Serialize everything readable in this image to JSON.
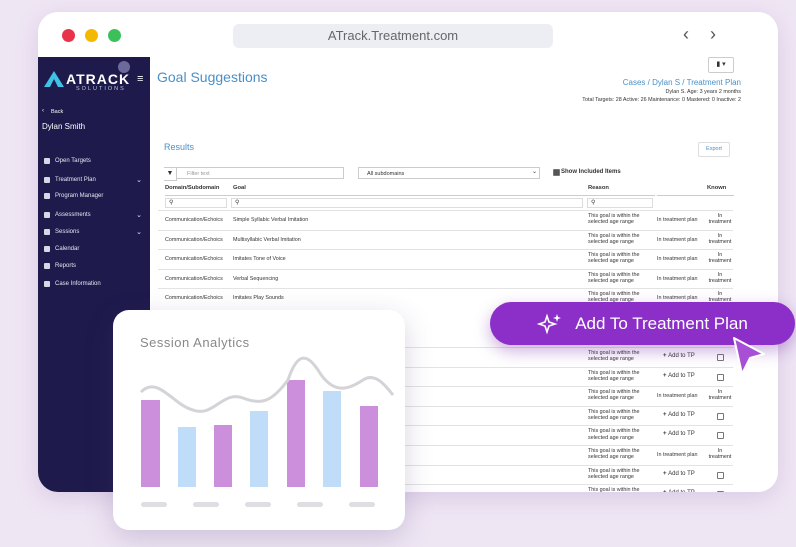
{
  "browser": {
    "url": "ATrack.Treatment.com"
  },
  "sidebar": {
    "logo": "ATRACK",
    "logo_sub": "SOLUTIONS",
    "back": "Back",
    "user": "Dylan Smith",
    "menu": [
      {
        "label": "Open Targets"
      },
      {
        "label": "Treatment Plan",
        "expandable": true
      },
      {
        "label": "Program Manager"
      },
      {
        "label": "Assessments",
        "expandable": true
      },
      {
        "label": "Sessions",
        "expandable": true
      },
      {
        "label": "Calendar"
      },
      {
        "label": "Reports"
      },
      {
        "label": "Case Information"
      }
    ]
  },
  "header": {
    "title": "Goal Suggestions",
    "breadcrumb": "Cases / Dylan S / Treatment Plan",
    "patient": "Dylan S. Age: 3 years 2 months",
    "stats": "Total Targets: 28   Active: 26   Maintenance: 0   Mastered: 0   Inactive: 2"
  },
  "results": {
    "title": "Results",
    "export": "Export",
    "filter_placeholder": "Filter text",
    "subdomain": "All subdomains",
    "show_included": "Show Included Items",
    "columns": [
      "Domain/Subdomain",
      "Goal",
      "Reason",
      "Known"
    ],
    "rows": [
      {
        "domain": "Communication/Echoics",
        "goal": "Simple Syllabic Verbal Imitation",
        "reason": "This goal is within the selected age range",
        "status": "In treatment plan",
        "known": "In treatment"
      },
      {
        "domain": "Communication/Echoics",
        "goal": "Multisyllabic Verbal Imitation",
        "reason": "This goal is within the selected age range",
        "status": "In treatment plan",
        "known": "In treatment"
      },
      {
        "domain": "Communication/Echoics",
        "goal": "Imitates Tone of Voice",
        "reason": "This goal is within the selected age range",
        "status": "In treatment plan",
        "known": "In treatment"
      },
      {
        "domain": "Communication/Echoics",
        "goal": "Verbal Sequencing",
        "reason": "This goal is within the selected age range",
        "status": "In treatment plan",
        "known": "In treatment"
      },
      {
        "domain": "Communication/Echoics",
        "goal": "Imitates Play Sounds",
        "reason": "This goal is within the selected age range",
        "status": "In treatment plan",
        "known": "In treatment"
      }
    ],
    "more_rows": [
      {
        "reason": "This goal is within the selected age range",
        "action": "Add to TP"
      },
      {
        "reason": "This goal is within the selected age range",
        "action": "Add to TP"
      },
      {
        "reason": "This goal is within the selected age range",
        "status": "In treatment plan",
        "known": "In treatment"
      },
      {
        "reason": "This goal is within the selected age range",
        "action": "Add to TP"
      },
      {
        "reason": "This goal is within the selected age range",
        "action": "Add to TP"
      },
      {
        "reason": "This goal is within the selected age range",
        "status": "In treatment plan",
        "known": "In treatment"
      },
      {
        "reason": "This goal is within the selected age range",
        "action": "Add to TP"
      },
      {
        "reason": "This goal is within the",
        "action": "Add to TP"
      }
    ]
  },
  "cta": "Add To Treatment Plan",
  "analytics": {
    "title": "Session Analytics"
  }
}
